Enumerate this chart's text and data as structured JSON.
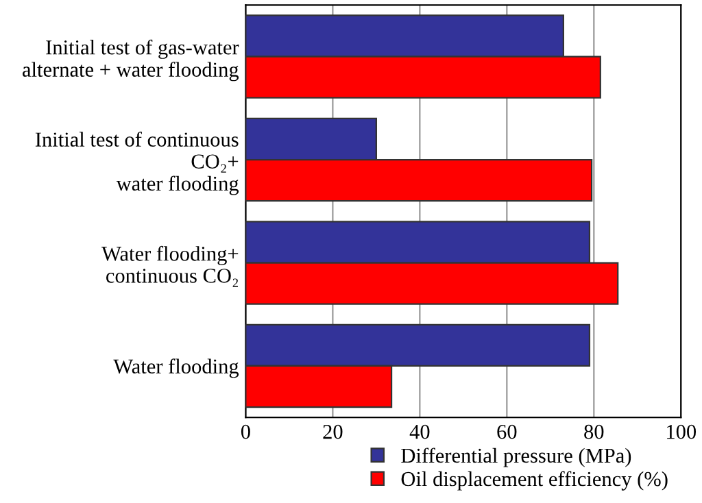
{
  "chart_data": {
    "type": "bar",
    "orientation": "horizontal",
    "categories": [
      "Initial test of gas-water\nalternate + water flooding",
      "Initial test of continuous\nCO₂+\nwater flooding",
      "Water flooding+\ncontinuous CO₂",
      "Water flooding"
    ],
    "series": [
      {
        "name": "Differential pressure (MPa)",
        "color": "#333399",
        "values": [
          73,
          30,
          79,
          79
        ]
      },
      {
        "name": "Oil displacement efficiency (%)",
        "color": "#ff0000",
        "values": [
          81.5,
          79.5,
          85.5,
          33.5
        ]
      }
    ],
    "xlim": [
      0,
      100
    ],
    "xticks": [
      0,
      20,
      40,
      60,
      80,
      100
    ],
    "grid": "x",
    "legend": "bottom right"
  }
}
